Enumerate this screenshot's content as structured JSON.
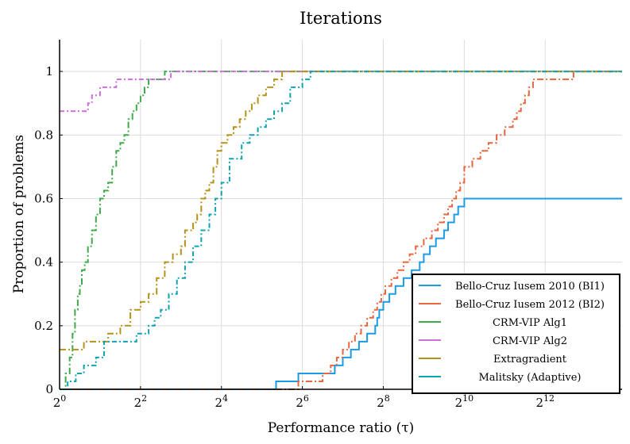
{
  "chart_data": {
    "type": "line",
    "step": true,
    "title": "Iterations",
    "xlabel": "Performance ratio (τ)",
    "ylabel": "Proportion of problems",
    "x_scale": "log2",
    "xlim_log2": [
      0,
      13.9
    ],
    "ylim": [
      0,
      1.1
    ],
    "x_ticks": [
      {
        "exp": 0,
        "base": "2",
        "sup": "0"
      },
      {
        "exp": 2,
        "base": "2",
        "sup": "2"
      },
      {
        "exp": 4,
        "base": "2",
        "sup": "4"
      },
      {
        "exp": 6,
        "base": "2",
        "sup": "6"
      },
      {
        "exp": 8,
        "base": "2",
        "sup": "8"
      },
      {
        "exp": 10,
        "base": "2",
        "sup": "10"
      },
      {
        "exp": 12,
        "base": "2",
        "sup": "12"
      }
    ],
    "y_ticks": [
      {
        "value": 0,
        "label": "0"
      },
      {
        "value": 0.2,
        "label": "0.2"
      },
      {
        "value": 0.4,
        "label": "0.4"
      },
      {
        "value": 0.6,
        "label": "0.6"
      },
      {
        "value": 0.8,
        "label": "0.8"
      },
      {
        "value": 1,
        "label": "1"
      }
    ],
    "grid": true,
    "legend_position": "bottom-right",
    "series": [
      {
        "name": "Bello-Cruz Iusem 2010 (BI1)",
        "color": "#1a9be3",
        "log2_tau": [
          0,
          5.35,
          5.9,
          6.8,
          7.0,
          7.2,
          7.4,
          7.6,
          7.8,
          7.85,
          7.9,
          8.0,
          8.15,
          8.3,
          8.5,
          8.7,
          8.9,
          9.0,
          9.15,
          9.3,
          9.5,
          9.6,
          9.75,
          9.85,
          10.0,
          13.9
        ],
        "rho": [
          0,
          0.025,
          0.05,
          0.075,
          0.1,
          0.125,
          0.15,
          0.175,
          0.2,
          0.225,
          0.25,
          0.275,
          0.3,
          0.325,
          0.35,
          0.375,
          0.4,
          0.425,
          0.45,
          0.475,
          0.5,
          0.525,
          0.55,
          0.575,
          0.6,
          0.6
        ]
      },
      {
        "name": "Bello-Cruz Iusem 2012 (BI2)",
        "color": "#e5663f",
        "log2_tau": [
          0,
          5.9,
          6.5,
          6.7,
          6.85,
          7.0,
          7.15,
          7.3,
          7.45,
          7.6,
          7.75,
          7.85,
          7.95,
          8.05,
          8.2,
          8.35,
          8.5,
          8.65,
          8.8,
          9.0,
          9.2,
          9.35,
          9.5,
          9.6,
          9.7,
          9.8,
          9.9,
          10.0,
          10.2,
          10.4,
          10.6,
          10.8,
          11.0,
          11.2,
          11.3,
          11.4,
          11.5,
          11.6,
          11.7,
          11.8,
          11.95,
          12.1,
          12.5,
          12.7,
          13.9
        ],
        "rho": [
          0,
          0.025,
          0.05,
          0.075,
          0.1,
          0.125,
          0.15,
          0.175,
          0.2,
          0.225,
          0.25,
          0.275,
          0.3,
          0.325,
          0.35,
          0.375,
          0.4,
          0.425,
          0.45,
          0.475,
          0.5,
          0.525,
          0.55,
          0.575,
          0.6,
          0.625,
          0.65,
          0.7,
          0.725,
          0.75,
          0.775,
          0.8,
          0.825,
          0.85,
          0.875,
          0.9,
          0.925,
          0.95,
          0.975,
          0.975,
          0.975,
          0.975,
          0.975,
          1.0,
          1.0
        ]
      },
      {
        "name": "CRM-VIP Alg1",
        "color": "#3eaa4a",
        "log2_tau": [
          0,
          0.15,
          0.25,
          0.32,
          0.38,
          0.45,
          0.5,
          0.55,
          0.62,
          0.7,
          0.8,
          0.9,
          1.0,
          1.1,
          1.2,
          1.3,
          1.4,
          1.5,
          1.6,
          1.7,
          1.8,
          1.9,
          2.0,
          2.1,
          2.2,
          2.3,
          2.4,
          2.5,
          2.6,
          2.7,
          13.9
        ],
        "rho": [
          0,
          0.05,
          0.1,
          0.175,
          0.25,
          0.3,
          0.325,
          0.375,
          0.4,
          0.45,
          0.5,
          0.55,
          0.6,
          0.625,
          0.65,
          0.7,
          0.75,
          0.775,
          0.8,
          0.85,
          0.875,
          0.9,
          0.925,
          0.95,
          0.975,
          0.975,
          0.975,
          0.975,
          1.0,
          1.0,
          1.0
        ]
      },
      {
        "name": "CRM-VIP Alg2",
        "color": "#cc6fd8",
        "log2_tau": [
          0,
          0.6,
          0.7,
          0.8,
          1.0,
          1.2,
          1.4,
          1.6,
          2.0,
          2.5,
          2.75,
          13.9
        ],
        "rho": [
          0.875,
          0.875,
          0.9,
          0.925,
          0.95,
          0.95,
          0.975,
          0.975,
          0.975,
          0.975,
          1.0,
          1.0
        ]
      },
      {
        "name": "Extragradient",
        "color": "#b5931a",
        "log2_tau": [
          0,
          0.6,
          1.2,
          1.5,
          1.75,
          2.0,
          2.2,
          2.4,
          2.6,
          2.8,
          3.0,
          3.1,
          3.2,
          3.3,
          3.4,
          3.5,
          3.6,
          3.7,
          3.8,
          3.9,
          4.0,
          4.15,
          4.3,
          4.45,
          4.6,
          4.75,
          4.9,
          5.1,
          5.3,
          5.5,
          13.9
        ],
        "rho": [
          0.125,
          0.15,
          0.175,
          0.2,
          0.25,
          0.275,
          0.3,
          0.35,
          0.4,
          0.425,
          0.45,
          0.5,
          0.5,
          0.525,
          0.55,
          0.6,
          0.625,
          0.65,
          0.7,
          0.75,
          0.775,
          0.8,
          0.825,
          0.85,
          0.875,
          0.9,
          0.925,
          0.95,
          0.975,
          1.0,
          1.0
        ]
      },
      {
        "name": "Malitsky (Adaptive)",
        "color": "#0fa3b1",
        "log2_tau": [
          0,
          0.2,
          0.4,
          0.6,
          0.9,
          1.1,
          1.9,
          2.2,
          2.35,
          2.5,
          2.7,
          2.9,
          3.1,
          3.3,
          3.5,
          3.7,
          3.85,
          4.0,
          4.2,
          4.5,
          4.7,
          4.9,
          5.1,
          5.3,
          5.5,
          5.7,
          6.0,
          6.2,
          13.9
        ],
        "rho": [
          0,
          0.025,
          0.05,
          0.075,
          0.1,
          0.15,
          0.175,
          0.2,
          0.225,
          0.25,
          0.3,
          0.35,
          0.4,
          0.45,
          0.5,
          0.55,
          0.6,
          0.65,
          0.725,
          0.775,
          0.8,
          0.825,
          0.85,
          0.875,
          0.9,
          0.95,
          0.975,
          1.0,
          1.0
        ]
      }
    ]
  }
}
